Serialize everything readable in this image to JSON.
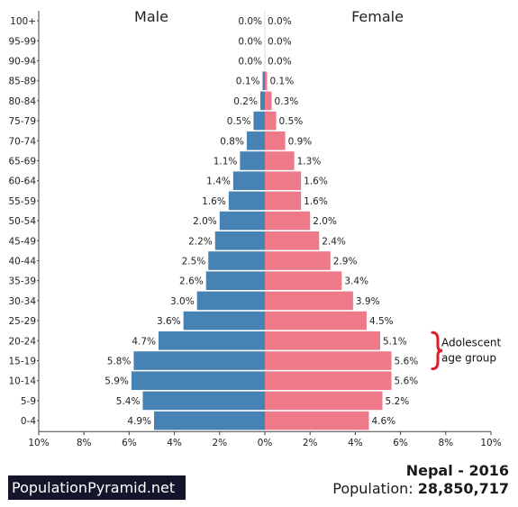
{
  "chart_data": {
    "type": "bar",
    "subtype": "population-pyramid",
    "categories": [
      "100+",
      "95-99",
      "90-94",
      "85-89",
      "80-84",
      "75-79",
      "70-74",
      "65-69",
      "60-64",
      "55-59",
      "50-54",
      "45-49",
      "40-44",
      "35-39",
      "30-34",
      "25-29",
      "20-24",
      "15-19",
      "10-14",
      "5-9",
      "0-4"
    ],
    "series": [
      {
        "name": "Male",
        "color": "#4682b4",
        "values": [
          0.0,
          0.0,
          0.0,
          0.1,
          0.2,
          0.5,
          0.8,
          1.1,
          1.4,
          1.6,
          2.0,
          2.2,
          2.5,
          2.6,
          3.0,
          3.6,
          4.7,
          5.8,
          5.9,
          5.4,
          4.9
        ],
        "labels": [
          "0.0%",
          "0.0%",
          "0.0%",
          "0.1%",
          "0.2%",
          "0.5%",
          "0.8%",
          "1.1%",
          "1.4%",
          "1.6%",
          "2.0%",
          "2.2%",
          "2.5%",
          "2.6%",
          "3.0%",
          "3.6%",
          "4.7%",
          "5.8%",
          "5.9%",
          "5.4%",
          "4.9%"
        ]
      },
      {
        "name": "Female",
        "color": "#ee7989",
        "values": [
          0.0,
          0.0,
          0.0,
          0.1,
          0.3,
          0.5,
          0.9,
          1.3,
          1.6,
          1.6,
          2.0,
          2.4,
          2.9,
          3.4,
          3.9,
          4.5,
          5.1,
          5.6,
          5.6,
          5.2,
          4.6
        ],
        "labels": [
          "0.0%",
          "0.0%",
          "0.0%",
          "0.1%",
          "0.3%",
          "0.5%",
          "0.9%",
          "1.3%",
          "1.6%",
          "1.6%",
          "2.0%",
          "2.4%",
          "2.9%",
          "3.4%",
          "3.9%",
          "4.5%",
          "5.1%",
          "5.6%",
          "5.6%",
          "5.2%",
          "4.6%"
        ]
      }
    ],
    "xlim": [
      -10,
      10
    ],
    "x_ticks": [
      "10%",
      "8%",
      "6%",
      "4%",
      "2%",
      "0%",
      "2%",
      "4%",
      "6%",
      "8%",
      "10%"
    ],
    "title_left": "Male",
    "title_right": "Female",
    "annotation": {
      "lines": [
        "Adolescent",
        "age group"
      ],
      "groups": [
        "20-24",
        "10-14"
      ],
      "color": "#e11d2a"
    },
    "grid": false
  },
  "footer": {
    "brand": "PopulationPyramid.net",
    "country_year": "Nepal - 2016",
    "population_label": "Population:",
    "population_value": "28,850,717"
  }
}
